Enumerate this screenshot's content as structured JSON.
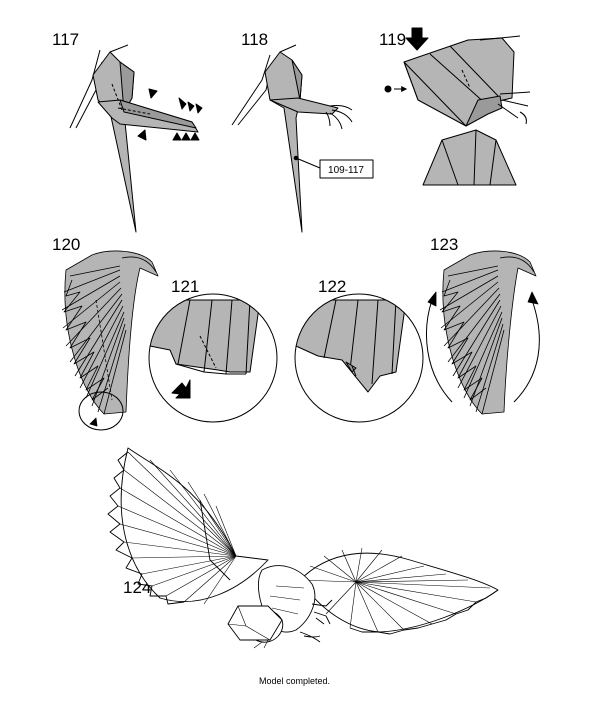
{
  "steps": {
    "s117": "117",
    "s118": "118",
    "s119": "119",
    "s120": "120",
    "s121": "121",
    "s122": "122",
    "s123": "123",
    "s124": "124"
  },
  "reference_label": "109-117",
  "caption": "Model completed.",
  "colors": {
    "paper": "#b5b5b5",
    "paper_dark": "#9a9a9a",
    "line": "#000000",
    "background": "#ffffff"
  }
}
